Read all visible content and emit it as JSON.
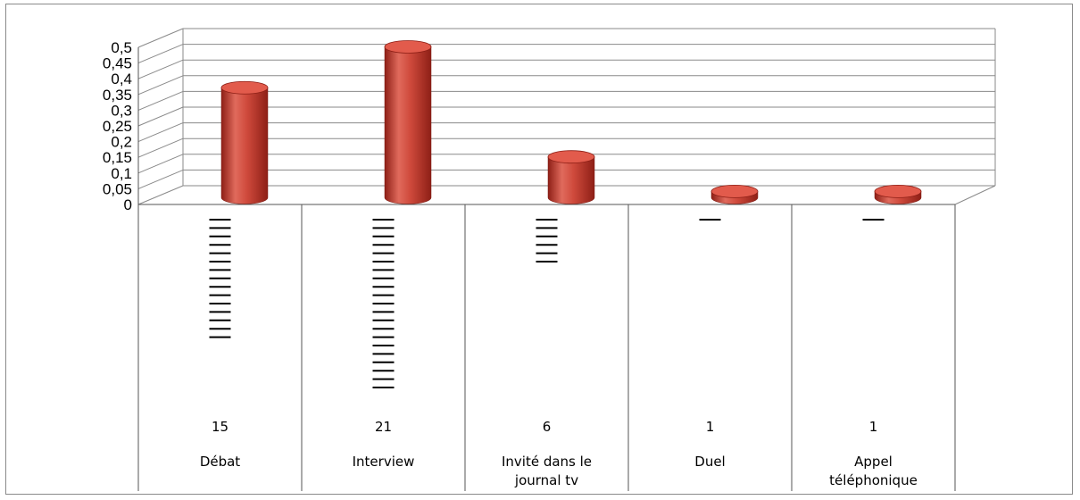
{
  "chart_data": {
    "type": "bar",
    "style": "3d-cylinder",
    "color": "#c0392b",
    "categories": [
      [
        "Débat"
      ],
      [
        "Interview"
      ],
      [
        "Invité dans le",
        "journal tv"
      ],
      [
        "Duel"
      ],
      [
        "Appel",
        "téléphonique"
      ]
    ],
    "values": [
      0.35,
      0.48,
      0.13,
      0.02,
      0.02
    ],
    "counts": [
      "15",
      "21",
      "6",
      "1",
      "1"
    ],
    "tally": [
      15,
      21,
      6,
      1,
      1
    ],
    "ylim": [
      0,
      0.5
    ],
    "yticks": [
      "0",
      "0,05",
      "0,1",
      "0,15",
      "0,2",
      "0,25",
      "0,3",
      "0,35",
      "0,4",
      "0,45",
      "0,5"
    ],
    "grid": true
  }
}
